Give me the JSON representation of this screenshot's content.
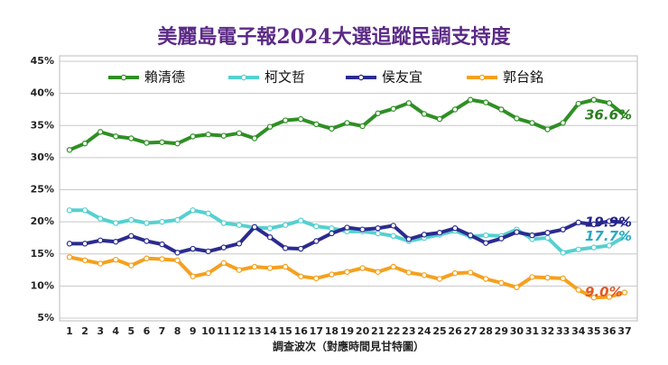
{
  "chart_data": {
    "type": "line",
    "title": "美麗島電子報2024大選追蹤民調支持度",
    "x_label": "調查波次（對應時間見甘特圖）",
    "categories": [
      "1",
      "2",
      "3",
      "4",
      "5",
      "6",
      "7",
      "8",
      "9",
      "10",
      "11",
      "12",
      "13",
      "14",
      "15",
      "16",
      "17",
      "18",
      "19",
      "20",
      "21",
      "22",
      "23",
      "24",
      "25",
      "26",
      "27",
      "28",
      "29",
      "30",
      "31",
      "32",
      "33",
      "34",
      "35",
      "36",
      "37"
    ],
    "ylim": [
      5,
      45
    ],
    "yticks": [
      {
        "value": 5,
        "label": "5%"
      },
      {
        "value": 10,
        "label": "10%"
      },
      {
        "value": 15,
        "label": "15%"
      },
      {
        "value": 20,
        "label": "20%"
      },
      {
        "value": 25,
        "label": "25%"
      },
      {
        "value": 30,
        "label": "30%"
      },
      {
        "value": 35,
        "label": "35%"
      },
      {
        "value": 40,
        "label": "40%"
      },
      {
        "value": 45,
        "label": "45%"
      }
    ],
    "grid": true,
    "series": [
      {
        "name": "賴清德",
        "color": "#2f8f24",
        "label_color": "#2a7d1e",
        "end_label": "36.6%",
        "values": [
          31.2,
          32.2,
          34.0,
          33.3,
          33.0,
          32.3,
          32.4,
          32.2,
          33.3,
          33.6,
          33.4,
          33.8,
          33.0,
          34.8,
          35.8,
          36.0,
          35.2,
          34.5,
          35.4,
          34.9,
          36.9,
          37.6,
          38.5,
          36.8,
          36.0,
          37.5,
          39.0,
          38.6,
          37.5,
          36.1,
          35.4,
          34.4,
          35.4,
          38.4,
          39.0,
          38.5,
          36.6
        ]
      },
      {
        "name": "柯文哲",
        "color": "#55d0d0",
        "label_color": "#2aa9c4",
        "end_label": "17.7%",
        "values": [
          21.8,
          21.8,
          20.5,
          19.8,
          20.3,
          19.8,
          20.0,
          20.3,
          21.8,
          21.3,
          19.8,
          19.5,
          19.1,
          19.0,
          19.5,
          20.2,
          19.3,
          19.0,
          18.5,
          18.5,
          18.2,
          17.8,
          17.0,
          17.5,
          18.0,
          18.6,
          17.7,
          17.9,
          17.8,
          18.8,
          17.3,
          17.5,
          15.2,
          15.7,
          16.0,
          16.3,
          17.7
        ]
      },
      {
        "name": "侯友宜",
        "color": "#2b2b8f",
        "label_color": "#23238a",
        "end_label": "19.9%",
        "values": [
          16.6,
          16.6,
          17.1,
          16.9,
          17.8,
          17.0,
          16.5,
          15.2,
          15.8,
          15.4,
          16.0,
          16.6,
          19.2,
          17.6,
          15.9,
          15.8,
          17.0,
          18.2,
          19.1,
          18.8,
          19.0,
          19.4,
          17.3,
          18.0,
          18.3,
          19.0,
          17.9,
          16.7,
          17.4,
          18.4,
          17.9,
          18.3,
          18.8,
          19.9,
          19.6,
          20.1,
          19.9
        ]
      },
      {
        "name": "郭台銘",
        "color": "#f4a11e",
        "label_color": "#e05a26",
        "end_label": "9.0%",
        "values": [
          14.5,
          14.0,
          13.5,
          14.1,
          13.2,
          14.3,
          14.2,
          14.0,
          11.5,
          12.0,
          13.6,
          12.5,
          13.0,
          12.8,
          13.0,
          11.5,
          11.2,
          11.8,
          12.2,
          12.8,
          12.2,
          13.0,
          12.1,
          11.7,
          11.1,
          12.0,
          12.1,
          11.1,
          10.5,
          9.8,
          11.4,
          11.3,
          11.2,
          9.4,
          8.2,
          8.3,
          9.0
        ]
      }
    ]
  }
}
